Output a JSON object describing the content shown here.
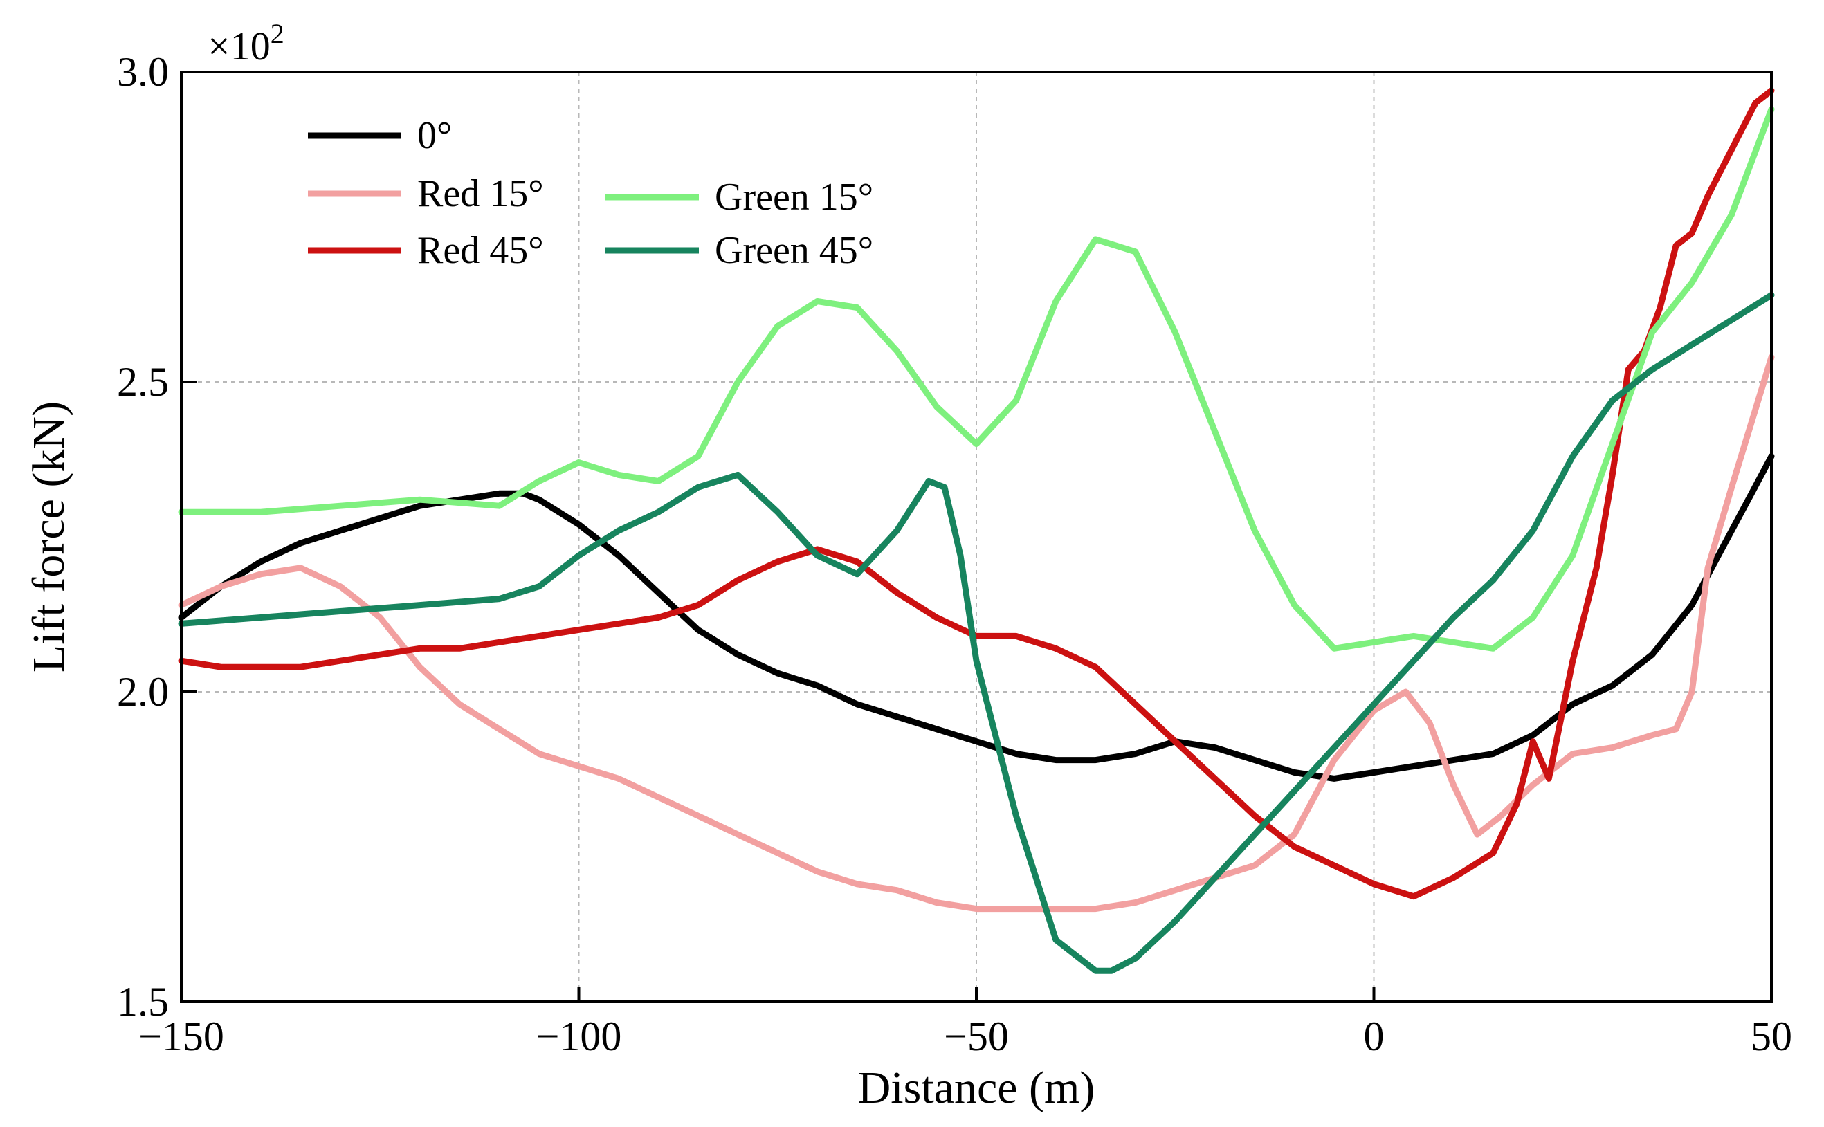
{
  "chart_data": {
    "type": "line",
    "title": "",
    "xlabel": "Distance (m)",
    "ylabel": "Lift force (kN)",
    "y_multiplier_base": "×10",
    "y_multiplier_exp": "2",
    "xlim": [
      -150,
      50
    ],
    "ylim": [
      1.5,
      3.0
    ],
    "xticks": [
      -150,
      -100,
      -50,
      0,
      50
    ],
    "xtick_labels": [
      "−150",
      "−100",
      "−50",
      "0",
      "50"
    ],
    "yticks": [
      1.5,
      2.0,
      2.5,
      3.0
    ],
    "ytick_labels": [
      "1.5",
      "2.0",
      "2.5",
      "3.0"
    ],
    "grid": true,
    "legend_position": "top-left",
    "series": [
      {
        "name": "0°",
        "color": "#000000",
        "x": [
          -150,
          -145,
          -140,
          -135,
          -130,
          -125,
          -120,
          -115,
          -110,
          -107,
          -105,
          -100,
          -95,
          -90,
          -85,
          -80,
          -75,
          -70,
          -65,
          -60,
          -55,
          -50,
          -45,
          -40,
          -35,
          -30,
          -25,
          -20,
          -15,
          -10,
          -5,
          0,
          5,
          10,
          15,
          20,
          25,
          30,
          35,
          40,
          45,
          50
        ],
        "y": [
          2.12,
          2.17,
          2.21,
          2.24,
          2.26,
          2.28,
          2.3,
          2.31,
          2.32,
          2.32,
          2.31,
          2.27,
          2.22,
          2.16,
          2.1,
          2.06,
          2.03,
          2.01,
          1.98,
          1.96,
          1.94,
          1.92,
          1.9,
          1.89,
          1.89,
          1.9,
          1.92,
          1.91,
          1.89,
          1.87,
          1.86,
          1.87,
          1.88,
          1.89,
          1.9,
          1.93,
          1.98,
          2.01,
          2.06,
          2.14,
          2.26,
          2.38
        ]
      },
      {
        "name": "Red 15°",
        "color": "#f2a0a0",
        "x": [
          -150,
          -145,
          -140,
          -135,
          -130,
          -125,
          -120,
          -115,
          -110,
          -105,
          -100,
          -95,
          -90,
          -85,
          -80,
          -75,
          -70,
          -65,
          -60,
          -55,
          -50,
          -45,
          -40,
          -35,
          -30,
          -25,
          -20,
          -15,
          -10,
          -5,
          0,
          4,
          7,
          10,
          13,
          16,
          20,
          25,
          30,
          35,
          38,
          40,
          42,
          45,
          50
        ],
        "y": [
          2.14,
          2.17,
          2.19,
          2.2,
          2.17,
          2.12,
          2.04,
          1.98,
          1.94,
          1.9,
          1.88,
          1.86,
          1.83,
          1.8,
          1.77,
          1.74,
          1.71,
          1.69,
          1.68,
          1.66,
          1.65,
          1.65,
          1.65,
          1.65,
          1.66,
          1.68,
          1.7,
          1.72,
          1.77,
          1.89,
          1.97,
          2.0,
          1.95,
          1.85,
          1.77,
          1.8,
          1.85,
          1.9,
          1.91,
          1.93,
          1.94,
          2.0,
          2.2,
          2.33,
          2.54
        ]
      },
      {
        "name": "Red 45°",
        "color": "#cc1111",
        "x": [
          -150,
          -145,
          -140,
          -135,
          -130,
          -125,
          -120,
          -115,
          -110,
          -105,
          -100,
          -95,
          -90,
          -85,
          -80,
          -75,
          -70,
          -65,
          -60,
          -55,
          -50,
          -45,
          -40,
          -35,
          -30,
          -25,
          -20,
          -15,
          -10,
          -5,
          0,
          5,
          10,
          15,
          18,
          20,
          22,
          25,
          28,
          30,
          32,
          34,
          36,
          38,
          40,
          42,
          44,
          46,
          48,
          50
        ],
        "y": [
          2.05,
          2.04,
          2.04,
          2.04,
          2.05,
          2.06,
          2.07,
          2.07,
          2.08,
          2.09,
          2.1,
          2.11,
          2.12,
          2.14,
          2.18,
          2.21,
          2.23,
          2.21,
          2.16,
          2.12,
          2.09,
          2.09,
          2.07,
          2.04,
          1.98,
          1.92,
          1.86,
          1.8,
          1.75,
          1.72,
          1.69,
          1.67,
          1.7,
          1.74,
          1.82,
          1.92,
          1.86,
          2.05,
          2.2,
          2.35,
          2.52,
          2.55,
          2.62,
          2.72,
          2.74,
          2.8,
          2.85,
          2.9,
          2.95,
          2.97
        ]
      },
      {
        "name": "Green 15°",
        "color": "#7ef07e",
        "x": [
          -150,
          -140,
          -130,
          -120,
          -110,
          -105,
          -100,
          -95,
          -90,
          -85,
          -80,
          -75,
          -70,
          -65,
          -60,
          -55,
          -50,
          -45,
          -40,
          -35,
          -30,
          -25,
          -20,
          -15,
          -10,
          -5,
          0,
          5,
          10,
          15,
          20,
          25,
          30,
          35,
          40,
          45,
          50
        ],
        "y": [
          2.29,
          2.29,
          2.3,
          2.31,
          2.3,
          2.34,
          2.37,
          2.35,
          2.34,
          2.38,
          2.5,
          2.59,
          2.63,
          2.62,
          2.55,
          2.46,
          2.4,
          2.47,
          2.63,
          2.73,
          2.71,
          2.58,
          2.42,
          2.26,
          2.14,
          2.07,
          2.08,
          2.09,
          2.08,
          2.07,
          2.12,
          2.22,
          2.4,
          2.58,
          2.66,
          2.77,
          2.94
        ]
      },
      {
        "name": "Green 45°",
        "color": "#17845e",
        "x": [
          -150,
          -140,
          -130,
          -120,
          -110,
          -105,
          -100,
          -95,
          -90,
          -85,
          -80,
          -75,
          -70,
          -65,
          -60,
          -56,
          -54,
          -52,
          -50,
          -45,
          -40,
          -35,
          -33,
          -30,
          -25,
          -20,
          -15,
          -10,
          -5,
          0,
          5,
          10,
          15,
          20,
          25,
          30,
          35,
          40,
          45,
          50
        ],
        "y": [
          2.11,
          2.12,
          2.13,
          2.14,
          2.15,
          2.17,
          2.22,
          2.26,
          2.29,
          2.33,
          2.35,
          2.29,
          2.22,
          2.19,
          2.26,
          2.34,
          2.33,
          2.22,
          2.05,
          1.8,
          1.6,
          1.55,
          1.55,
          1.57,
          1.63,
          1.7,
          1.77,
          1.84,
          1.91,
          1.98,
          2.05,
          2.12,
          2.18,
          2.26,
          2.38,
          2.47,
          2.52,
          2.56,
          2.6,
          2.64
        ]
      }
    ]
  }
}
